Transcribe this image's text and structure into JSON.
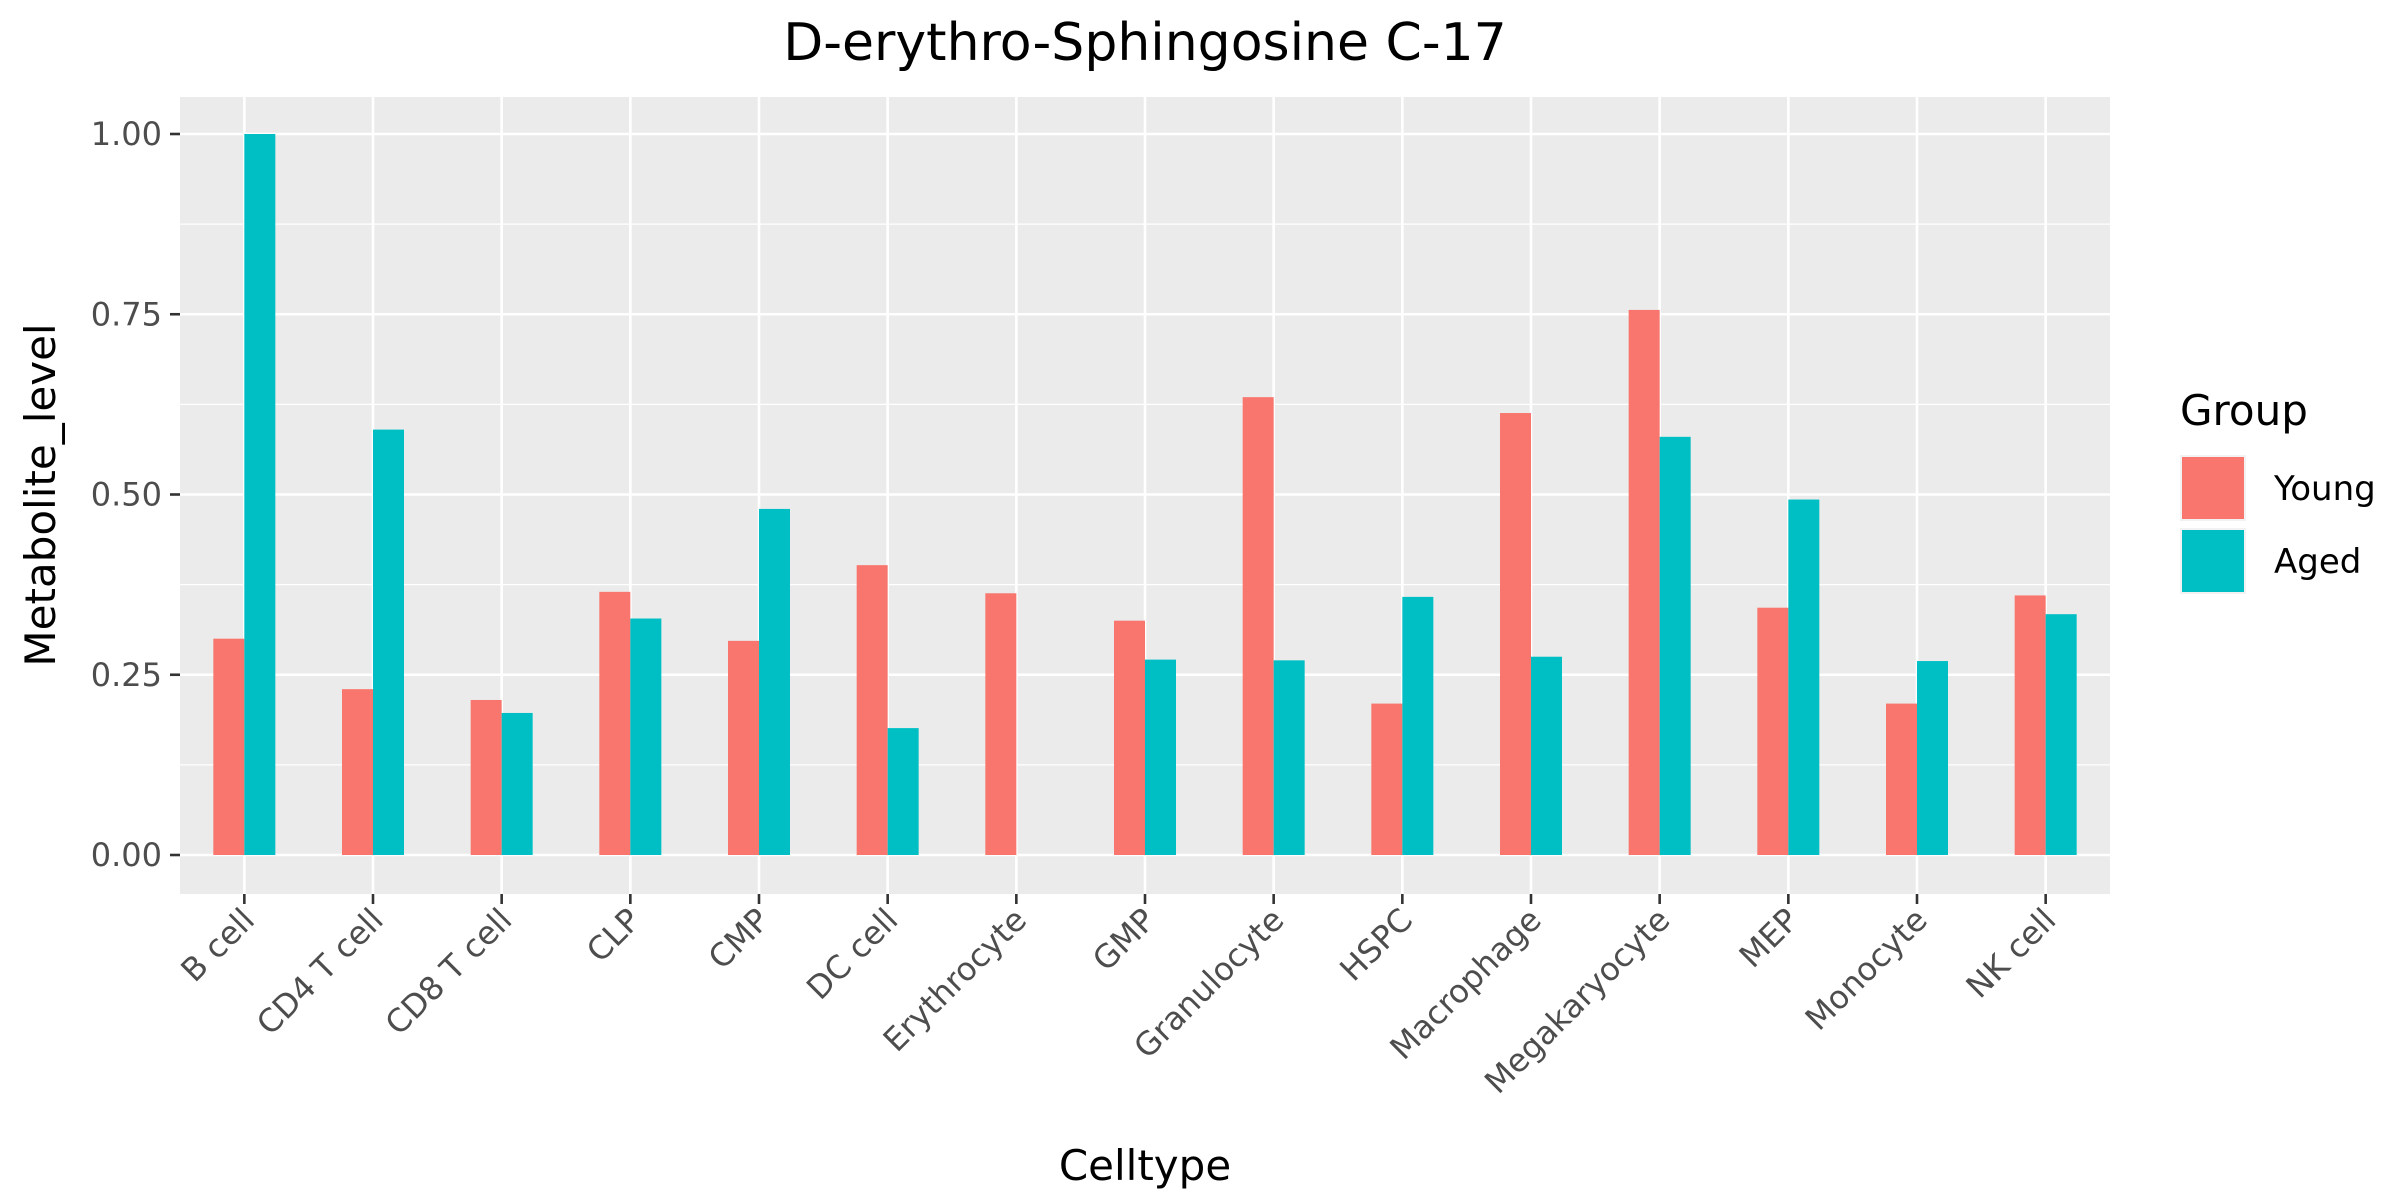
{
  "chart_data": {
    "type": "bar",
    "title": "D-erythro-Sphingosine C-17",
    "xlabel": "Celltype",
    "ylabel": "Metabolite_level",
    "ylim": [
      0,
      1.05
    ],
    "yticks": [
      "0.00",
      "0.25",
      "0.50",
      "0.75",
      "1.00"
    ],
    "ytick_values": [
      0,
      0.25,
      0.5,
      0.75,
      1.0
    ],
    "grid": true,
    "legend": {
      "title": "Group",
      "position": "right"
    },
    "categories": [
      "B cell",
      "CD4 T cell",
      "CD8 T cell",
      "CLP",
      "CMP",
      "DC cell",
      "Erythrocyte",
      "GMP",
      "Granulocyte",
      "HSPC",
      "Macrophage",
      "Megakaryocyte",
      "MEP",
      "Monocyte",
      "NK cell"
    ],
    "series": [
      {
        "name": "Young",
        "color": "#F8766D",
        "values": [
          0.3,
          0.23,
          0.215,
          0.365,
          0.297,
          0.402,
          0.363,
          0.325,
          0.635,
          0.21,
          0.613,
          0.756,
          0.343,
          0.21,
          0.36
        ]
      },
      {
        "name": "Aged",
        "color": "#00BFC4",
        "values": [
          1.0,
          0.59,
          0.197,
          0.328,
          0.48,
          0.176,
          null,
          0.271,
          0.27,
          0.358,
          0.275,
          0.58,
          0.493,
          0.269,
          0.334
        ]
      }
    ]
  },
  "colors": {
    "panel_bg": "#EBEBEB",
    "grid": "#FFFFFF",
    "tick": "#333333"
  }
}
